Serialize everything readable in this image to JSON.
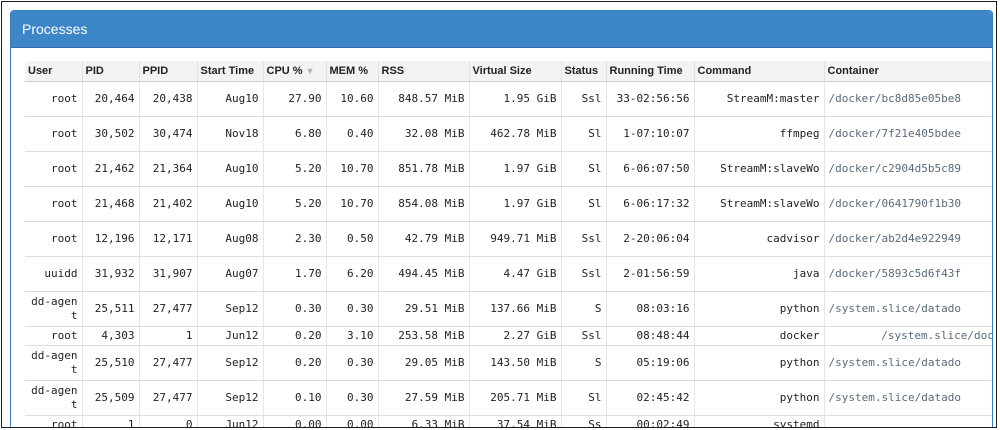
{
  "panel": {
    "title": "Processes"
  },
  "table": {
    "headers": [
      "User",
      "PID",
      "PPID",
      "Start Time",
      "CPU %",
      "MEM %",
      "RSS",
      "Virtual Size",
      "Status",
      "Running Time",
      "Command",
      "Container"
    ],
    "rows": [
      {
        "user": "root",
        "pid": "20,464",
        "ppid": "20,438",
        "start": "Aug10",
        "cpu": "27.90",
        "mem": "10.60",
        "rss": "848.57 MiB",
        "vsize": "1.95 GiB",
        "status": "Ssl",
        "running": "33-02:56:56",
        "command": "StreamM:master",
        "container": "/docker/bc8d85e05be8"
      },
      {
        "user": "root",
        "pid": "30,502",
        "ppid": "30,474",
        "start": "Nov18",
        "cpu": "6.80",
        "mem": "0.40",
        "rss": "32.08 MiB",
        "vsize": "462.78 MiB",
        "status": "Sl",
        "running": "1-07:10:07",
        "command": "ffmpeg",
        "container": "/docker/7f21e405bdee"
      },
      {
        "user": "root",
        "pid": "21,462",
        "ppid": "21,364",
        "start": "Aug10",
        "cpu": "5.20",
        "mem": "10.70",
        "rss": "851.78 MiB",
        "vsize": "1.97 GiB",
        "status": "Sl",
        "running": "6-06:07:50",
        "command": "StreamM:slaveWo",
        "container": "/docker/c2904d5b5c89"
      },
      {
        "user": "root",
        "pid": "21,468",
        "ppid": "21,402",
        "start": "Aug10",
        "cpu": "5.20",
        "mem": "10.70",
        "rss": "854.08 MiB",
        "vsize": "1.97 GiB",
        "status": "Sl",
        "running": "6-06:17:32",
        "command": "StreamM:slaveWo",
        "container": "/docker/0641790f1b30"
      },
      {
        "user": "root",
        "pid": "12,196",
        "ppid": "12,171",
        "start": "Aug08",
        "cpu": "2.30",
        "mem": "0.50",
        "rss": "42.79 MiB",
        "vsize": "949.71 MiB",
        "status": "Ssl",
        "running": "2-20:06:04",
        "command": "cadvisor",
        "container": "/docker/ab2d4e922949"
      },
      {
        "user": "uuidd",
        "pid": "31,932",
        "ppid": "31,907",
        "start": "Aug07",
        "cpu": "1.70",
        "mem": "6.20",
        "rss": "494.45 MiB",
        "vsize": "4.47 GiB",
        "status": "Ssl",
        "running": "2-01:56:59",
        "command": "java",
        "container": "/docker/5893c5d6f43f"
      },
      {
        "user": "dd-agent",
        "pid": "25,511",
        "ppid": "27,477",
        "start": "Sep12",
        "cpu": "0.30",
        "mem": "0.30",
        "rss": "29.51 MiB",
        "vsize": "137.66 MiB",
        "status": "S",
        "running": "08:03:16",
        "command": "python",
        "container": "/system.slice/datado"
      },
      {
        "user": "root",
        "pid": "4,303",
        "ppid": "1",
        "start": "Jun12",
        "cpu": "0.20",
        "mem": "3.10",
        "rss": "253.58 MiB",
        "vsize": "2.27 GiB",
        "status": "Ssl",
        "running": "08:48:44",
        "command": "docker",
        "container": "/system.slice/dock"
      },
      {
        "user": "dd-agent",
        "pid": "25,510",
        "ppid": "27,477",
        "start": "Sep12",
        "cpu": "0.20",
        "mem": "0.30",
        "rss": "29.05 MiB",
        "vsize": "143.50 MiB",
        "status": "S",
        "running": "05:19:06",
        "command": "python",
        "container": "/system.slice/datado"
      },
      {
        "user": "dd-agent",
        "pid": "25,509",
        "ppid": "27,477",
        "start": "Sep12",
        "cpu": "0.10",
        "mem": "0.30",
        "rss": "27.59 MiB",
        "vsize": "205.71 MiB",
        "status": "Sl",
        "running": "02:45:42",
        "command": "python",
        "container": "/system.slice/datado"
      },
      {
        "user": "root",
        "pid": "1",
        "ppid": "0",
        "start": "Jun12",
        "cpu": "0.00",
        "mem": "0.00",
        "rss": "6.33 MiB",
        "vsize": "37.54 MiB",
        "status": "Ss",
        "running": "00:02:49",
        "command": "systemd",
        "container": "/"
      }
    ]
  },
  "sort": {
    "column": "CPU %",
    "indicator_icon": "sort-descending-icon"
  },
  "colors": {
    "header_bg": "#3d86c8",
    "container_text": "#5a6a7a"
  }
}
